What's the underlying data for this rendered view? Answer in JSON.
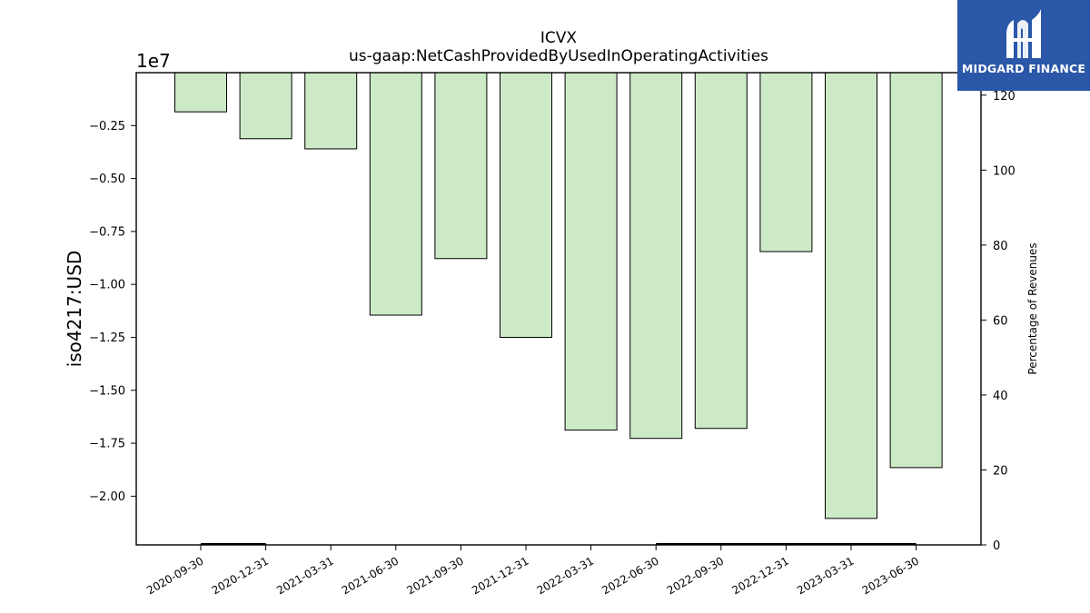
{
  "chart_data": {
    "type": "bar",
    "title": "ICVX",
    "subtitle": "us-gaap:NetCashProvidedByUsedInOperatingActivities",
    "ylabel": "iso4217:USD",
    "y_exponent_label": "1e7",
    "y2label": "Percentage of Revenues",
    "categories": [
      "2020-09-30",
      "2020-12-31",
      "2021-03-31",
      "2021-06-30",
      "2021-09-30",
      "2021-12-31",
      "2022-03-31",
      "2022-06-30",
      "2022-09-30",
      "2022-12-31",
      "2023-03-31",
      "2023-06-30"
    ],
    "values": [
      -1850000,
      -3120000,
      -3600000,
      -11450000,
      -8780000,
      -12500000,
      -16880000,
      -17270000,
      -16800000,
      -8450000,
      -21050000,
      -18650000
    ],
    "ylim": [
      -22300000,
      0
    ],
    "yticks": [
      -2.0,
      -1.75,
      -1.5,
      -1.25,
      -1.0,
      -0.75,
      -0.5,
      -0.25
    ],
    "ytick_labels": [
      "−2.00",
      "−1.75",
      "−1.50",
      "−1.25",
      "−1.00",
      "−0.75",
      "−0.50",
      "−0.25"
    ],
    "y2lim": [
      0,
      126
    ],
    "y2ticks": [
      0,
      20,
      40,
      60,
      80,
      100,
      120
    ],
    "y2_series": [
      {
        "values": [
          0,
          0,
          null,
          null,
          null,
          null,
          null,
          0,
          0,
          0,
          0,
          0
        ]
      }
    ],
    "bar_color": "#cdeac7",
    "bar_edge": "#000000",
    "grid": false
  },
  "logo": {
    "text": "MIDGARD FINANCE",
    "bg": "#2b57a8"
  }
}
